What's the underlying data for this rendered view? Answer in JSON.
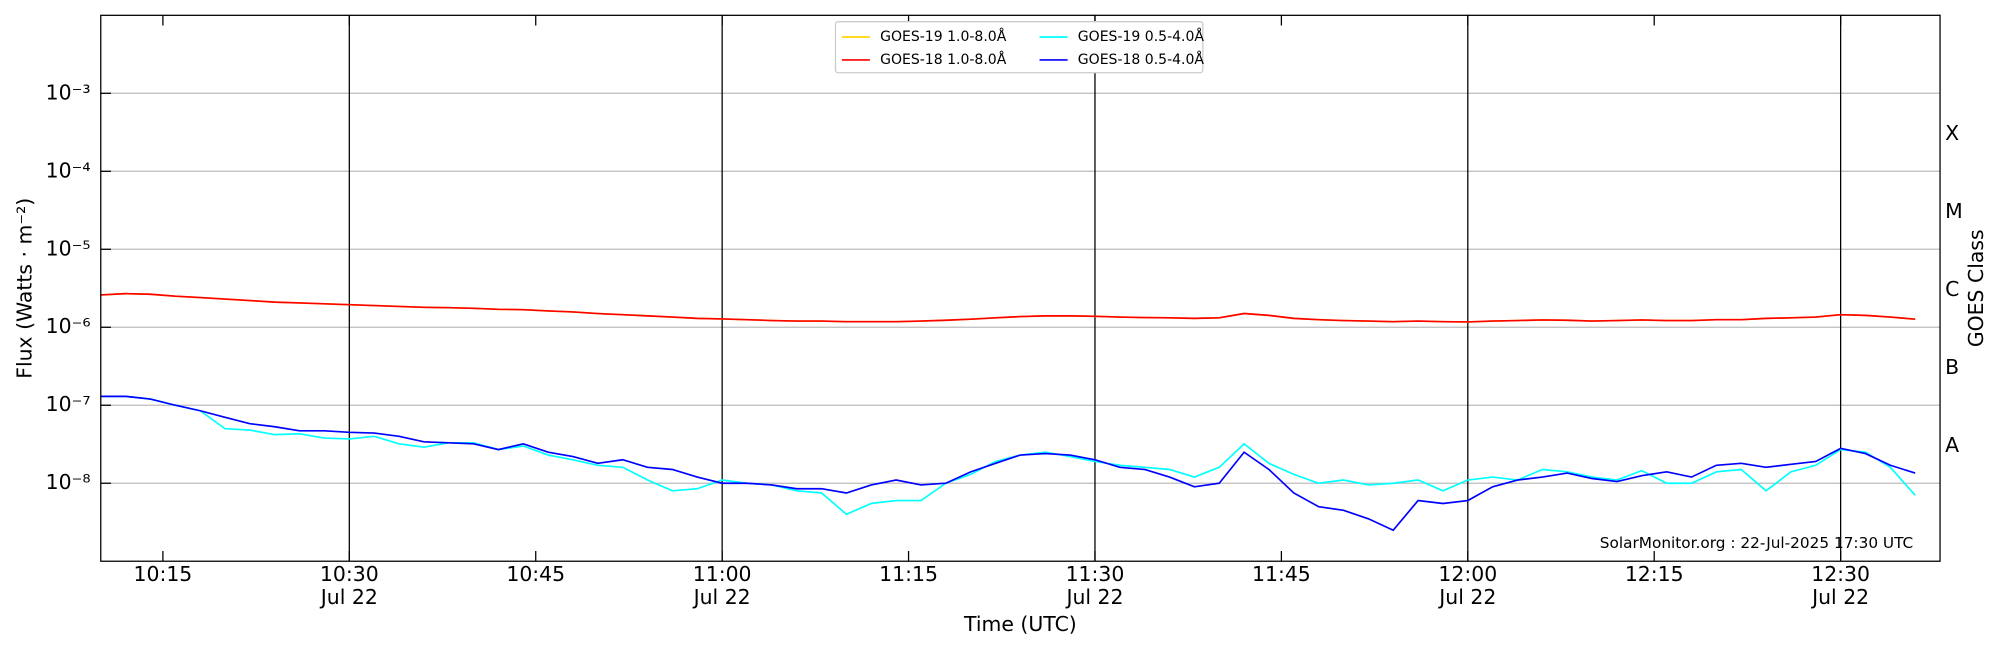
{
  "chart_data": {
    "type": "line",
    "x_label": "Time (UTC)",
    "y_label": "Flux (Watts · m⁻²)",
    "y2_label": "GOES Class",
    "annotation": "SolarMonitor.org : 22-Jul-2025 17:30 UTC",
    "yscale": "log",
    "grid": true,
    "legend": "upper center",
    "xlim": [
      "10:10",
      "12:38"
    ],
    "xticks": [
      "10:15",
      {
        "value": "10:30",
        "label": "10:30",
        "date": "Jul 22"
      },
      "10:45",
      {
        "value": "11:00",
        "label": "11:00",
        "date": "Jul 22"
      },
      "11:15",
      {
        "value": "11:30",
        "label": "11:30",
        "date": "Jul 22"
      },
      "11:45",
      {
        "value": "12:00",
        "label": "12:00",
        "date": "Jul 22"
      },
      "12:15",
      {
        "value": "12:30",
        "label": "12:30",
        "date": "Jul 22"
      }
    ],
    "ylim": [
      1e-09,
      0.01
    ],
    "yticks": [
      {
        "value": 1e-08,
        "label": "10⁻⁸"
      },
      {
        "value": 1e-07,
        "label": "10⁻⁷"
      },
      {
        "value": 1e-06,
        "label": "10⁻⁶"
      },
      {
        "value": 1e-05,
        "label": "10⁻⁵"
      },
      {
        "value": 0.0001,
        "label": "10⁻⁴"
      },
      {
        "value": 0.001,
        "label": "10⁻³"
      }
    ],
    "y2lim": [
      1e-09,
      0.01
    ],
    "y2ticks": [
      {
        "value": 3e-08,
        "label": "A"
      },
      {
        "value": 3e-07,
        "label": "B"
      },
      {
        "value": 3e-06,
        "label": "C"
      },
      {
        "value": 3e-05,
        "label": "M"
      },
      {
        "value": 0.0003,
        "label": "X"
      }
    ],
    "x": [
      "10:10",
      "10:12",
      "10:14",
      "10:16",
      "10:18",
      "10:20",
      "10:22",
      "10:24",
      "10:26",
      "10:28",
      "10:30",
      "10:32",
      "10:34",
      "10:36",
      "10:38",
      "10:40",
      "10:42",
      "10:44",
      "10:46",
      "10:48",
      "10:50",
      "10:52",
      "10:54",
      "10:56",
      "10:58",
      "11:00",
      "11:02",
      "11:04",
      "11:06",
      "11:08",
      "11:10",
      "11:12",
      "11:14",
      "11:16",
      "11:18",
      "11:20",
      "11:22",
      "11:24",
      "11:26",
      "11:28",
      "11:30",
      "11:32",
      "11:34",
      "11:36",
      "11:38",
      "11:40",
      "11:42",
      "11:44",
      "11:46",
      "11:48",
      "11:50",
      "11:52",
      "11:54",
      "11:56",
      "11:58",
      "12:00",
      "12:02",
      "12:04",
      "12:06",
      "12:08",
      "12:10",
      "12:12",
      "12:14",
      "12:16",
      "12:18",
      "12:20",
      "12:22",
      "12:24",
      "12:26",
      "12:28",
      "12:30",
      "12:32",
      "12:34",
      "12:36"
    ],
    "series": [
      {
        "name": "GOES-19 1.0-8.0Å",
        "color": "gold",
        "values": [
          2.6e-06,
          2.7e-06,
          2.65e-06,
          2.5e-06,
          2.4e-06,
          2.3e-06,
          2.2e-06,
          2.1e-06,
          2.05e-06,
          2e-06,
          1.95e-06,
          1.9e-06,
          1.85e-06,
          1.8e-06,
          1.78e-06,
          1.75e-06,
          1.7e-06,
          1.68e-06,
          1.62e-06,
          1.57e-06,
          1.5e-06,
          1.45e-06,
          1.4e-06,
          1.35e-06,
          1.3e-06,
          1.28e-06,
          1.25e-06,
          1.22e-06,
          1.2e-06,
          1.2e-06,
          1.18e-06,
          1.18e-06,
          1.18e-06,
          1.2e-06,
          1.23e-06,
          1.27e-06,
          1.32e-06,
          1.37e-06,
          1.4e-06,
          1.4e-06,
          1.38e-06,
          1.35e-06,
          1.33e-06,
          1.32e-06,
          1.3e-06,
          1.32e-06,
          1.5e-06,
          1.42e-06,
          1.3e-06,
          1.25e-06,
          1.22e-06,
          1.2e-06,
          1.18e-06,
          1.2e-06,
          1.18e-06,
          1.17e-06,
          1.2e-06,
          1.22e-06,
          1.24e-06,
          1.23e-06,
          1.2e-06,
          1.22e-06,
          1.24e-06,
          1.22e-06,
          1.22e-06,
          1.25e-06,
          1.25e-06,
          1.3e-06,
          1.32e-06,
          1.35e-06,
          1.45e-06,
          1.42e-06,
          1.35e-06,
          1.27e-06
        ]
      },
      {
        "name": "GOES-18 1.0-8.0Å",
        "color": "red",
        "values": [
          2.6e-06,
          2.7e-06,
          2.65e-06,
          2.5e-06,
          2.4e-06,
          2.3e-06,
          2.2e-06,
          2.1e-06,
          2.05e-06,
          2e-06,
          1.95e-06,
          1.9e-06,
          1.85e-06,
          1.8e-06,
          1.78e-06,
          1.75e-06,
          1.7e-06,
          1.68e-06,
          1.62e-06,
          1.57e-06,
          1.5e-06,
          1.45e-06,
          1.4e-06,
          1.35e-06,
          1.3e-06,
          1.28e-06,
          1.25e-06,
          1.22e-06,
          1.2e-06,
          1.2e-06,
          1.18e-06,
          1.18e-06,
          1.18e-06,
          1.2e-06,
          1.23e-06,
          1.27e-06,
          1.32e-06,
          1.37e-06,
          1.4e-06,
          1.4e-06,
          1.38e-06,
          1.35e-06,
          1.33e-06,
          1.32e-06,
          1.3e-06,
          1.32e-06,
          1.5e-06,
          1.42e-06,
          1.3e-06,
          1.25e-06,
          1.22e-06,
          1.2e-06,
          1.18e-06,
          1.2e-06,
          1.18e-06,
          1.17e-06,
          1.2e-06,
          1.22e-06,
          1.24e-06,
          1.23e-06,
          1.2e-06,
          1.22e-06,
          1.24e-06,
          1.22e-06,
          1.22e-06,
          1.25e-06,
          1.25e-06,
          1.3e-06,
          1.32e-06,
          1.35e-06,
          1.45e-06,
          1.42e-06,
          1.35e-06,
          1.27e-06
        ]
      },
      {
        "name": "GOES-19 0.5-4.0Å",
        "color": "cyan",
        "values": [
          1.3e-07,
          1.3e-07,
          1.2e-07,
          1e-07,
          8.5e-08,
          5e-08,
          4.8e-08,
          4.2e-08,
          4.3e-08,
          3.8e-08,
          3.7e-08,
          4e-08,
          3.2e-08,
          2.9e-08,
          3.3e-08,
          3.3e-08,
          2.7e-08,
          3e-08,
          2.3e-08,
          2e-08,
          1.7e-08,
          1.6e-08,
          1.1e-08,
          8e-09,
          8.5e-09,
          1.1e-08,
          1e-08,
          9.5e-09,
          8e-09,
          7.5e-09,
          4e-09,
          5.5e-09,
          6e-09,
          6e-09,
          1e-08,
          1.3e-08,
          1.9e-08,
          2.3e-08,
          2.5e-08,
          2.2e-08,
          1.9e-08,
          1.7e-08,
          1.6e-08,
          1.5e-08,
          1.2e-08,
          1.6e-08,
          3.2e-08,
          1.8e-08,
          1.3e-08,
          1e-08,
          1.1e-08,
          9.5e-09,
          1e-08,
          1.1e-08,
          8e-09,
          1.1e-08,
          1.2e-08,
          1.1e-08,
          1.5e-08,
          1.4e-08,
          1.2e-08,
          1.1e-08,
          1.45e-08,
          1e-08,
          1e-08,
          1.4e-08,
          1.5e-08,
          8e-09,
          1.4e-08,
          1.7e-08,
          2.7e-08,
          2.5e-08,
          1.6e-08,
          7e-09
        ]
      },
      {
        "name": "GOES-18 0.5-4.0Å",
        "color": "blue",
        "values": [
          1.3e-07,
          1.3e-07,
          1.2e-07,
          1e-07,
          8.5e-08,
          7e-08,
          5.8e-08,
          5.3e-08,
          4.7e-08,
          4.7e-08,
          4.5e-08,
          4.4e-08,
          4e-08,
          3.4e-08,
          3.3e-08,
          3.2e-08,
          2.7e-08,
          3.2e-08,
          2.5e-08,
          2.2e-08,
          1.8e-08,
          2e-08,
          1.6e-08,
          1.5e-08,
          1.2e-08,
          1e-08,
          1e-08,
          9.5e-09,
          8.5e-09,
          8.5e-09,
          7.5e-09,
          9.5e-09,
          1.1e-08,
          9.5e-09,
          1e-08,
          1.4e-08,
          1.8e-08,
          2.3e-08,
          2.4e-08,
          2.3e-08,
          2e-08,
          1.6e-08,
          1.5e-08,
          1.2e-08,
          9e-09,
          1e-08,
          2.5e-08,
          1.5e-08,
          7.5e-09,
          5e-09,
          4.5e-09,
          3.5e-09,
          2.5e-09,
          6e-09,
          5.5e-09,
          6e-09,
          9e-09,
          1.1e-08,
          1.2e-08,
          1.35e-08,
          1.15e-08,
          1.05e-08,
          1.25e-08,
          1.4e-08,
          1.2e-08,
          1.7e-08,
          1.8e-08,
          1.6e-08,
          1.75e-08,
          1.9e-08,
          2.8e-08,
          2.4e-08,
          1.7e-08,
          1.35e-08
        ]
      }
    ]
  }
}
